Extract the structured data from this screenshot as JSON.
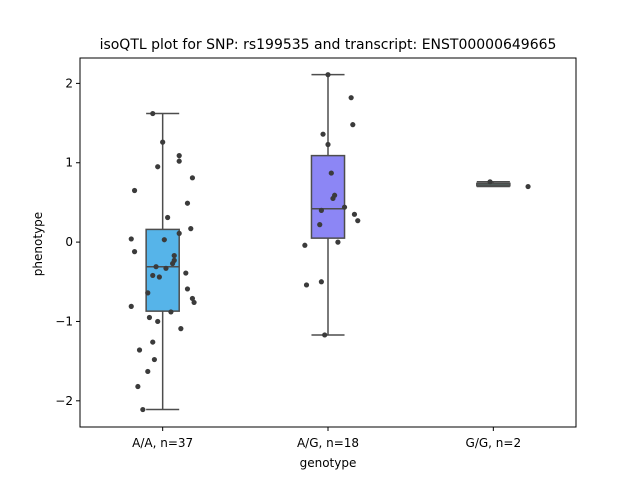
{
  "chart_data": {
    "type": "box",
    "title": "isoQTL plot for SNP: rs199535 and transcript: ENST00000649665",
    "xlabel": "genotype",
    "ylabel": "phenotype",
    "ylim": [
      -2.33,
      2.32
    ],
    "yticks": [
      -2,
      -1,
      0,
      1,
      2
    ],
    "ytick_labels": [
      "−2",
      "−1",
      "0",
      "1",
      "2"
    ],
    "grid": false,
    "legend": "none",
    "categories": [
      "A/A, n=37",
      "A/G, n=18",
      "G/G, n=2"
    ],
    "colors": {
      "box_fills": [
        "#56b4e9",
        "#8c86f5",
        "#59bea9"
      ],
      "box_edge": "#4d4d4d",
      "points": "#3b3b3b"
    },
    "boxes": [
      {
        "q1": -0.87,
        "median": -0.31,
        "q3": 0.16,
        "whisker_low": -2.11,
        "whisker_high": 1.62
      },
      {
        "q1": 0.05,
        "median": 0.42,
        "q3": 1.09,
        "whisker_low": -1.17,
        "whisker_high": 2.11
      },
      {
        "q1": 0.71,
        "median": 0.73,
        "q3": 0.74,
        "whisker_low": 0.7,
        "whisker_high": 0.76
      }
    ],
    "points": [
      [
        1.62,
        1.26,
        1.09,
        1.02,
        0.95,
        0.81,
        0.65,
        0.49,
        0.31,
        0.17,
        0.11,
        0.04,
        -0.12,
        -0.17,
        -0.23,
        -0.27,
        -0.31,
        -0.33,
        -0.39,
        -0.42,
        -0.44,
        -0.59,
        -0.64,
        -0.71,
        -0.76,
        -0.81,
        -0.88,
        -0.95,
        -1.0,
        -1.09,
        -1.26,
        -1.36,
        -1.48,
        -1.63,
        -1.82,
        -2.11,
        0.03
      ],
      [
        2.11,
        1.82,
        1.48,
        1.36,
        1.23,
        0.87,
        0.59,
        0.55,
        0.44,
        0.4,
        0.35,
        0.27,
        0.22,
        0.0,
        -0.04,
        -0.5,
        -0.54,
        -1.17
      ],
      [
        0.76,
        0.7
      ]
    ],
    "point_offsets": [
      [
        -0.06,
        0.0,
        0.1,
        0.1,
        -0.03,
        0.18,
        -0.17,
        0.15,
        0.03,
        0.17,
        0.1,
        -0.19,
        -0.17,
        0.07,
        0.07,
        0.06,
        -0.04,
        0.02,
        0.14,
        -0.06,
        -0.02,
        0.15,
        -0.09,
        0.18,
        0.19,
        -0.19,
        0.05,
        -0.08,
        -0.03,
        0.11,
        -0.06,
        -0.14,
        -0.05,
        -0.09,
        -0.15,
        -0.12,
        0.01
      ],
      [
        0.0,
        0.14,
        0.15,
        -0.03,
        0.0,
        0.02,
        0.04,
        0.03,
        0.1,
        -0.04,
        0.16,
        0.18,
        -0.05,
        0.06,
        -0.14,
        -0.04,
        -0.13,
        -0.02
      ],
      [
        -0.02,
        0.21
      ]
    ]
  }
}
